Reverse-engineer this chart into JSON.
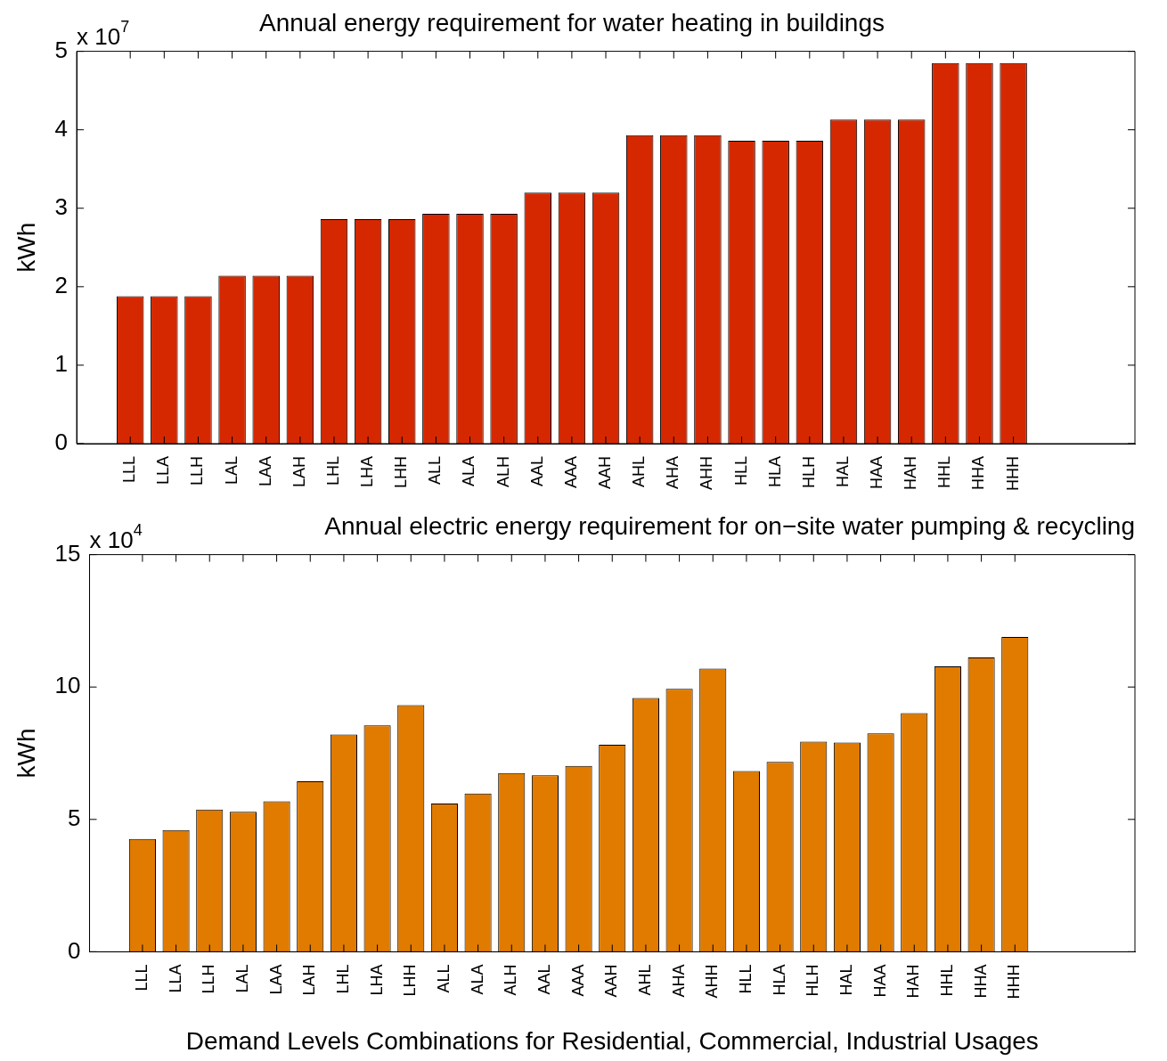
{
  "chart_data": [
    {
      "type": "bar",
      "title": "Annual energy requirement for water heating in buildings",
      "ylabel": "kWh",
      "annotations": [
        "x 10$^{7}$"
      ],
      "categories": [
        "LLL",
        "LLA",
        "LLH",
        "LAL",
        "LAA",
        "LAH",
        "LHL",
        "LHA",
        "LHH",
        "ALL",
        "ALA",
        "ALH",
        "AAL",
        "AAA",
        "AAH",
        "AHL",
        "AHA",
        "AHH",
        "HLL",
        "HLA",
        "HLH",
        "HAL",
        "HAA",
        "HAH",
        "HHL",
        "HHA",
        "HHH"
      ],
      "series": [
        {
          "color": "#d62800",
          "values": [
            1.88,
            1.88,
            1.88,
            2.14,
            2.14,
            2.14,
            2.86,
            2.86,
            2.86,
            2.93,
            2.93,
            2.93,
            3.2,
            3.2,
            3.2,
            3.93,
            3.93,
            3.93,
            3.86,
            3.86,
            3.86,
            4.13,
            4.13,
            4.13,
            4.85,
            4.85,
            4.85
          ]
        }
      ],
      "ylim": [
        0,
        5
      ],
      "yticks": [
        0,
        1,
        2,
        3,
        4,
        5
      ],
      "grid": false,
      "legend": false
    },
    {
      "type": "bar",
      "title": "Annual electric energy requirement for on−site water pumping & recycling",
      "ylabel": "kWh",
      "xlabel": "Demand Levels Combinations for Residential, Commercial, Industrial Usages",
      "annotations": [
        "x 10$^{4}$"
      ],
      "categories": [
        "LLL",
        "LLA",
        "LLH",
        "LAL",
        "LAA",
        "LAH",
        "LHL",
        "LHA",
        "LHH",
        "ALL",
        "ALA",
        "ALH",
        "AAL",
        "AAA",
        "AAH",
        "AHL",
        "AHA",
        "AHH",
        "HLL",
        "HLA",
        "HLH",
        "HAL",
        "HAA",
        "HAH",
        "HHL",
        "HHA",
        "HHH"
      ],
      "series": [
        {
          "color": "#e07b00",
          "values": [
            4.26,
            4.6,
            5.37,
            5.29,
            5.68,
            6.44,
            8.21,
            8.55,
            9.32,
            5.6,
            5.98,
            6.75,
            6.67,
            7.02,
            7.82,
            9.59,
            9.93,
            10.7,
            6.83,
            7.17,
            7.94,
            7.9,
            8.25,
            9.01,
            10.78,
            11.12,
            11.89
          ]
        }
      ],
      "ylim": [
        0,
        15
      ],
      "yticks": [
        0,
        5,
        10,
        15
      ],
      "grid": false,
      "legend": false
    }
  ]
}
